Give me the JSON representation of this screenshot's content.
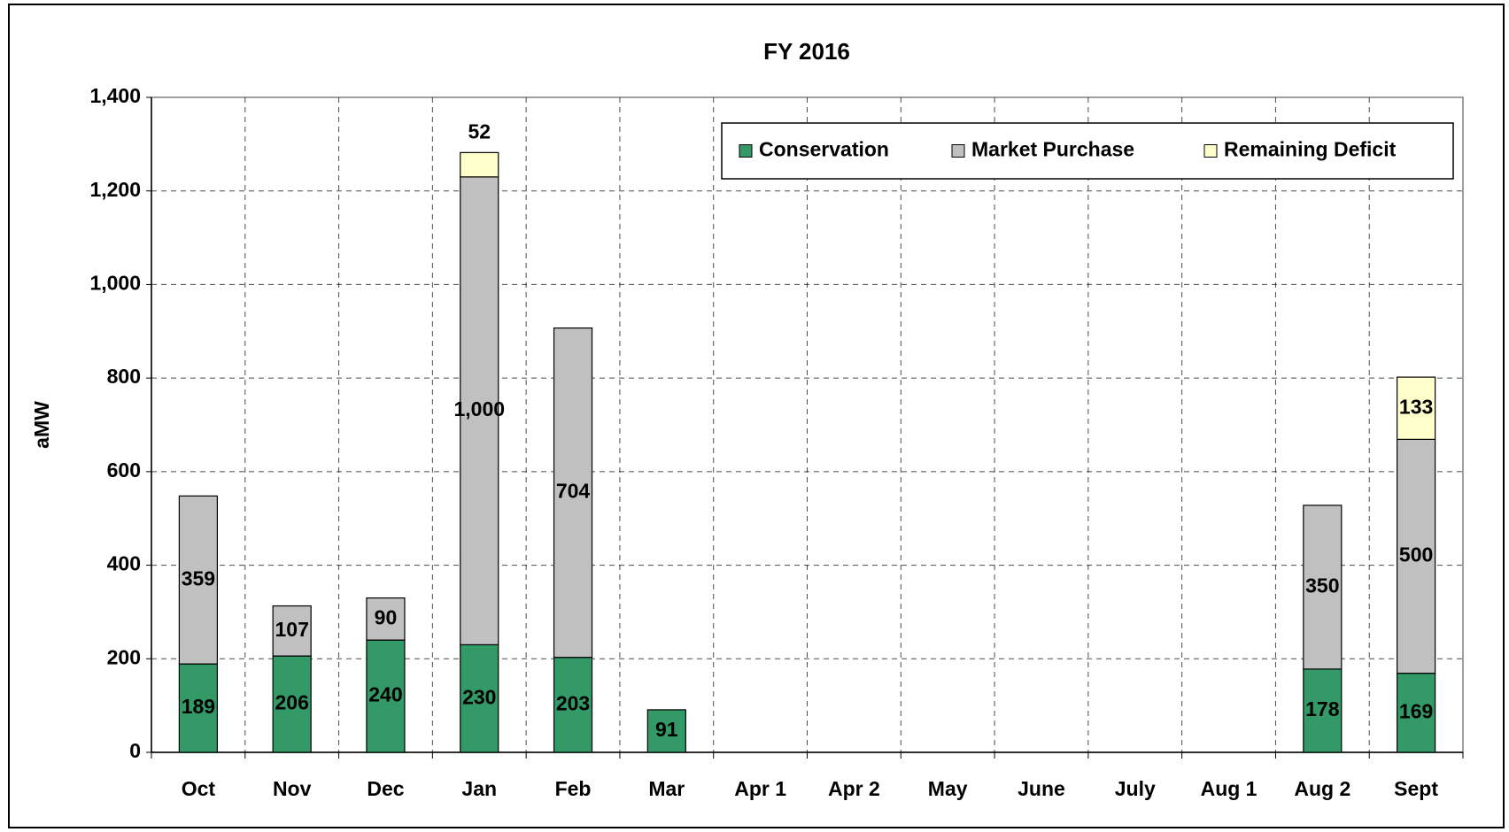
{
  "chart_data": {
    "type": "stacked-bar",
    "title": "FY 2016",
    "y_label": "aMW",
    "categories": [
      "Oct",
      "Nov",
      "Dec",
      "Jan",
      "Feb",
      "Mar",
      "Apr 1",
      "Apr 2",
      "May",
      "June",
      "July",
      "Aug 1",
      "Aug 2",
      "Sept"
    ],
    "series": [
      {
        "name": "Conservation",
        "color": "#339966",
        "values": [
          189,
          206,
          240,
          230,
          203,
          91,
          null,
          null,
          null,
          null,
          null,
          null,
          178,
          169
        ]
      },
      {
        "name": "Market Purchase",
        "color": "#c0c0c0",
        "values": [
          359,
          107,
          90,
          1000,
          704,
          null,
          null,
          null,
          null,
          null,
          null,
          null,
          350,
          500
        ],
        "value_labels": [
          "359",
          "107",
          "90",
          "1,000",
          "704",
          null,
          null,
          null,
          null,
          null,
          null,
          null,
          "350",
          "500"
        ]
      },
      {
        "name": "Remaining Deficit",
        "color": "#ffffcc",
        "values": [
          null,
          null,
          null,
          52,
          null,
          null,
          null,
          null,
          null,
          null,
          null,
          null,
          null,
          133
        ]
      }
    ],
    "ylim": [
      0,
      1400
    ],
    "yticks": [
      0,
      200,
      400,
      600,
      800,
      {
        "value": 1000,
        "label": "1,000"
      },
      {
        "value": 1200,
        "label": "1,200"
      },
      {
        "value": 1400,
        "label": "1,400"
      }
    ],
    "grid": true,
    "legend": "top-right"
  }
}
